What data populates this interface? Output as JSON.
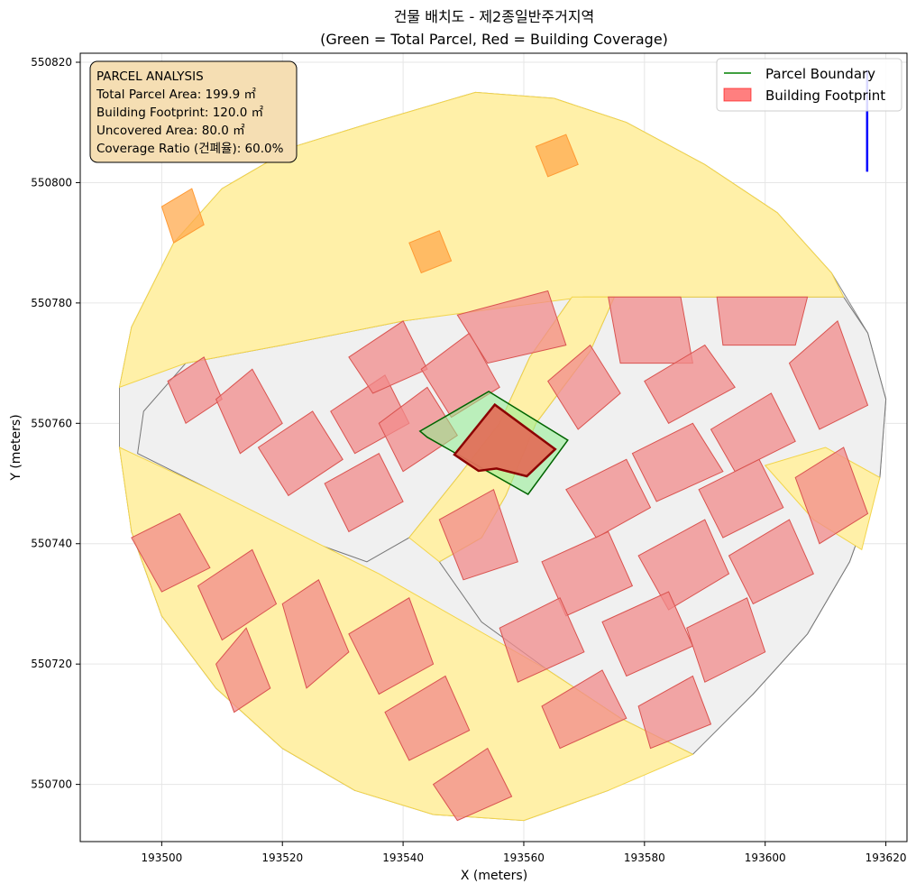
{
  "chart_data": {
    "type": "map",
    "title": "건물 배치도 - 제2종일반주거지역",
    "subtitle": "(Green = Total Parcel, Red = Building Coverage)",
    "xlabel": "X (meters)",
    "ylabel": "Y (meters)",
    "xlim": [
      193486.5,
      193623.5
    ],
    "ylim": [
      550690.5,
      550821.5
    ],
    "xticks": [
      193500,
      193520,
      193540,
      193560,
      193580,
      193600,
      193620
    ],
    "yticks": [
      550700,
      550720,
      550740,
      550760,
      550780,
      550800,
      550820
    ],
    "grid": true,
    "legend_position": "top-right",
    "legend": [
      {
        "label": "Parcel Boundary",
        "color": "#008000",
        "kind": "line"
      },
      {
        "label": "Building Footprint",
        "color": "#ff0000",
        "kind": "patch"
      }
    ],
    "info_box": {
      "lines": [
        "PARCEL ANALYSIS",
        "Total Parcel Area: 199.9 ㎡",
        "Building Footprint: 120.0 ㎡",
        "Uncovered Area: 80.0 ㎡",
        "Coverage Ratio (건폐율): 60.0%"
      ],
      "position": "top-left"
    },
    "target_parcel": {
      "area_m2": 199.9,
      "polygon": [
        [
          193542.8,
          550758.7
        ],
        [
          193554.2,
          550765.3
        ],
        [
          193567.3,
          550757.2
        ],
        [
          193560.7,
          550748.2
        ],
        [
          193544.0,
          550757.7
        ]
      ]
    },
    "target_building": {
      "area_m2": 120.0,
      "polygon": [
        [
          193548.5,
          550754.8
        ],
        [
          193555.2,
          550763.1
        ],
        [
          193565.2,
          550755.7
        ],
        [
          193560.5,
          550751.2
        ],
        [
          193555.5,
          550752.5
        ],
        [
          193552.5,
          550752.1
        ]
      ]
    },
    "north_arrow": {
      "x": 193616.9,
      "y_start": 550801.8,
      "y_end": 550818.7
    },
    "study_area": [
      [
        193495.0,
        550776
      ],
      [
        193502,
        550790
      ],
      [
        193510,
        550799
      ],
      [
        193522,
        550806
      ],
      [
        193535,
        550810
      ],
      [
        193552,
        550815
      ],
      [
        193565,
        550814
      ],
      [
        193577,
        550810
      ],
      [
        193590,
        550803
      ],
      [
        193602,
        550795
      ],
      [
        193611,
        550785
      ],
      [
        193617,
        550775
      ],
      [
        193620,
        550764
      ],
      [
        193619,
        550751
      ],
      [
        193614,
        550737
      ],
      [
        193607,
        550725
      ],
      [
        193598,
        550715
      ],
      [
        193587,
        550706
      ],
      [
        193574,
        550699
      ],
      [
        193560,
        550694
      ],
      [
        193545,
        550695
      ],
      [
        193532,
        550699
      ],
      [
        193520,
        550706
      ],
      [
        193509,
        550716
      ],
      [
        193500,
        550728
      ],
      [
        193495,
        550742
      ],
      [
        193493,
        550756
      ],
      [
        193493,
        550766
      ]
    ],
    "road_polygons": [
      [
        [
          193493,
          550766
        ],
        [
          193495,
          550776
        ],
        [
          193502,
          550790
        ],
        [
          193510,
          550799
        ],
        [
          193522,
          550806
        ],
        [
          193535,
          550810
        ],
        [
          193552,
          550815
        ],
        [
          193565,
          550814
        ],
        [
          193577,
          550810
        ],
        [
          193590,
          550803
        ],
        [
          193602,
          550795
        ],
        [
          193611,
          550785
        ],
        [
          193613,
          550781
        ],
        [
          193570,
          550781
        ],
        [
          193540,
          550777
        ],
        [
          193520,
          550773
        ],
        [
          193504,
          550770
        ]
      ],
      [
        [
          193493,
          550756
        ],
        [
          193508,
          550749
        ],
        [
          193522,
          550742
        ],
        [
          193536,
          550735
        ],
        [
          193550,
          550727
        ],
        [
          193564,
          550719
        ],
        [
          193576,
          550711
        ],
        [
          193588,
          550705
        ],
        [
          193574,
          550699
        ],
        [
          193560,
          550694
        ],
        [
          193545,
          550695
        ],
        [
          193532,
          550699
        ],
        [
          193520,
          550706
        ],
        [
          193509,
          550716
        ],
        [
          193500,
          550728
        ],
        [
          193495,
          550742
        ]
      ],
      [
        [
          193568,
          550781
        ],
        [
          193575,
          550781
        ],
        [
          193571,
          550772
        ],
        [
          193562,
          550760
        ],
        [
          193557,
          550748
        ],
        [
          193553,
          550741
        ],
        [
          193546,
          550737
        ],
        [
          193541,
          550741
        ],
        [
          193549,
          550751
        ],
        [
          193556,
          550760
        ],
        [
          193561,
          550771
        ]
      ],
      [
        [
          193600,
          550753
        ],
        [
          193608,
          550744
        ],
        [
          193616,
          550739
        ],
        [
          193619,
          550751
        ],
        [
          193610,
          550756
        ]
      ]
    ],
    "block_polygons": [
      [
        [
          193504,
          550770
        ],
        [
          193520,
          550773
        ],
        [
          193540,
          550777
        ],
        [
          193568,
          550781
        ],
        [
          193561,
          550771
        ],
        [
          193556,
          550760
        ],
        [
          193549,
          550751
        ],
        [
          193541,
          550741
        ],
        [
          193534,
          550737
        ],
        [
          193520,
          550742
        ],
        [
          193508,
          550749
        ],
        [
          193496,
          550755
        ],
        [
          193497,
          550762
        ]
      ],
      [
        [
          193575,
          550781
        ],
        [
          193613,
          550781
        ],
        [
          193617,
          550775
        ],
        [
          193620,
          550764
        ],
        [
          193619,
          550751
        ],
        [
          193614,
          550737
        ],
        [
          193607,
          550725
        ],
        [
          193598,
          550715
        ],
        [
          193588,
          550705
        ],
        [
          193576,
          550711
        ],
        [
          193564,
          550719
        ],
        [
          193553,
          550727
        ],
        [
          193546,
          550737
        ],
        [
          193553,
          550741
        ],
        [
          193557,
          550748
        ],
        [
          193562,
          550760
        ],
        [
          193571,
          550772
        ]
      ],
      [
        [
          193495,
          550742
        ],
        [
          193500,
          550728
        ],
        [
          193509,
          550716
        ],
        [
          193520,
          550706
        ],
        [
          193532,
          550699
        ],
        [
          193536,
          550706
        ],
        [
          193527,
          550715
        ],
        [
          193514,
          550726
        ],
        [
          193505,
          550735
        ]
      ]
    ],
    "buildings": [
      [
        [
          193501,
          550767
        ],
        [
          193507,
          550771
        ],
        [
          193510,
          550764
        ],
        [
          193504,
          550760
        ]
      ],
      [
        [
          193509,
          550764
        ],
        [
          193515,
          550769
        ],
        [
          193520,
          550760
        ],
        [
          193513,
          550755
        ]
      ],
      [
        [
          193516,
          550756
        ],
        [
          193525,
          550762
        ],
        [
          193530,
          550754
        ],
        [
          193521,
          550748
        ]
      ],
      [
        [
          193528,
          550762
        ],
        [
          193537,
          550768
        ],
        [
          193541,
          550760
        ],
        [
          193532,
          550755
        ]
      ],
      [
        [
          193527,
          550750
        ],
        [
          193536,
          550755
        ],
        [
          193540,
          550747
        ],
        [
          193531,
          550742
        ]
      ],
      [
        [
          193536,
          550760
        ],
        [
          193544,
          550766
        ],
        [
          193549,
          550758
        ],
        [
          193540,
          550752
        ]
      ],
      [
        [
          193531,
          550771
        ],
        [
          193540,
          550777
        ],
        [
          193544,
          550769
        ],
        [
          193535,
          550765
        ]
      ],
      [
        [
          193543,
          550769
        ],
        [
          193551,
          550775
        ],
        [
          193556,
          550766
        ],
        [
          193548,
          550761
        ]
      ],
      [
        [
          193549,
          550778
        ],
        [
          193564,
          550782
        ],
        [
          193567,
          550773
        ],
        [
          193554,
          550770
        ]
      ],
      [
        [
          193564,
          550767
        ],
        [
          193571,
          550773
        ],
        [
          193576,
          550765
        ],
        [
          193569,
          550759
        ]
      ],
      [
        [
          193574,
          550781
        ],
        [
          193586,
          550781
        ],
        [
          193588,
          550770
        ],
        [
          193576,
          550770
        ]
      ],
      [
        [
          193592,
          550781
        ],
        [
          193607,
          550781
        ],
        [
          193605,
          550773
        ],
        [
          193593,
          550773
        ]
      ],
      [
        [
          193580,
          550767
        ],
        [
          193590,
          550773
        ],
        [
          193595,
          550766
        ],
        [
          193584,
          550760
        ]
      ],
      [
        [
          193591,
          550759
        ],
        [
          193601,
          550765
        ],
        [
          193605,
          550757
        ],
        [
          193595,
          550752
        ]
      ],
      [
        [
          193604,
          550770
        ],
        [
          193612,
          550777
        ],
        [
          193617,
          550763
        ],
        [
          193609,
          550759
        ]
      ],
      [
        [
          193578,
          550755
        ],
        [
          193588,
          550760
        ],
        [
          193593,
          550752
        ],
        [
          193582,
          550747
        ]
      ],
      [
        [
          193567,
          550749
        ],
        [
          193577,
          550754
        ],
        [
          193581,
          550746
        ],
        [
          193572,
          550741
        ]
      ],
      [
        [
          193589,
          550749
        ],
        [
          193599,
          550754
        ],
        [
          193603,
          550746
        ],
        [
          193593,
          550741
        ]
      ],
      [
        [
          193605,
          550751
        ],
        [
          193613,
          550756
        ],
        [
          193617,
          550745
        ],
        [
          193609,
          550740
        ]
      ],
      [
        [
          193594,
          550738
        ],
        [
          193604,
          550744
        ],
        [
          193608,
          550735
        ],
        [
          193598,
          550730
        ]
      ],
      [
        [
          193579,
          550738
        ],
        [
          193590,
          550744
        ],
        [
          193594,
          550735
        ],
        [
          193584,
          550729
        ]
      ],
      [
        [
          193563,
          550737
        ],
        [
          193574,
          550742
        ],
        [
          193578,
          550733
        ],
        [
          193567,
          550728
        ]
      ],
      [
        [
          193573,
          550727
        ],
        [
          193584,
          550732
        ],
        [
          193588,
          550723
        ],
        [
          193577,
          550718
        ]
      ],
      [
        [
          193587,
          550726
        ],
        [
          193597,
          550731
        ],
        [
          193600,
          550722
        ],
        [
          193590,
          550717
        ]
      ],
      [
        [
          193556,
          550726
        ],
        [
          193566,
          550731
        ],
        [
          193570,
          550722
        ],
        [
          193559,
          550717
        ]
      ],
      [
        [
          193546,
          550744
        ],
        [
          193555,
          550749
        ],
        [
          193559,
          550737
        ],
        [
          193550,
          550734
        ]
      ],
      [
        [
          193563,
          550713
        ],
        [
          193573,
          550719
        ],
        [
          193577,
          550711
        ],
        [
          193566,
          550706
        ]
      ],
      [
        [
          193579,
          550713
        ],
        [
          193588,
          550718
        ],
        [
          193591,
          550710
        ],
        [
          193581,
          550706
        ]
      ],
      [
        [
          193537,
          550712
        ],
        [
          193547,
          550718
        ],
        [
          193551,
          550709
        ],
        [
          193541,
          550704
        ]
      ],
      [
        [
          193495,
          550741
        ],
        [
          193503,
          550745
        ],
        [
          193508,
          550736
        ],
        [
          193500,
          550732
        ]
      ],
      [
        [
          193506,
          550733
        ],
        [
          193515,
          550739
        ],
        [
          193519,
          550730
        ],
        [
          193510,
          550724
        ]
      ],
      [
        [
          193520,
          550730
        ],
        [
          193526,
          550734
        ],
        [
          193531,
          550722
        ],
        [
          193524,
          550716
        ]
      ],
      [
        [
          193531,
          550725
        ],
        [
          193541,
          550731
        ],
        [
          193545,
          550720
        ],
        [
          193536,
          550715
        ]
      ],
      [
        [
          193545,
          550700
        ],
        [
          193554,
          550706
        ],
        [
          193558,
          550698
        ],
        [
          193549,
          550694
        ]
      ],
      [
        [
          193509,
          550720
        ],
        [
          193514,
          550726
        ],
        [
          193518,
          550716
        ],
        [
          193512,
          550712
        ]
      ]
    ],
    "parcels_orange": [
      [
        [
          193500,
          550796
        ],
        [
          193505,
          550799
        ],
        [
          193507,
          550793
        ],
        [
          193502,
          550790
        ]
      ],
      [
        [
          193541,
          550790
        ],
        [
          193546,
          550792
        ],
        [
          193548,
          550787
        ],
        [
          193543,
          550785
        ]
      ],
      [
        [
          193562,
          550806
        ],
        [
          193567,
          550808
        ],
        [
          193569,
          550803
        ],
        [
          193564,
          550801
        ]
      ]
    ]
  }
}
